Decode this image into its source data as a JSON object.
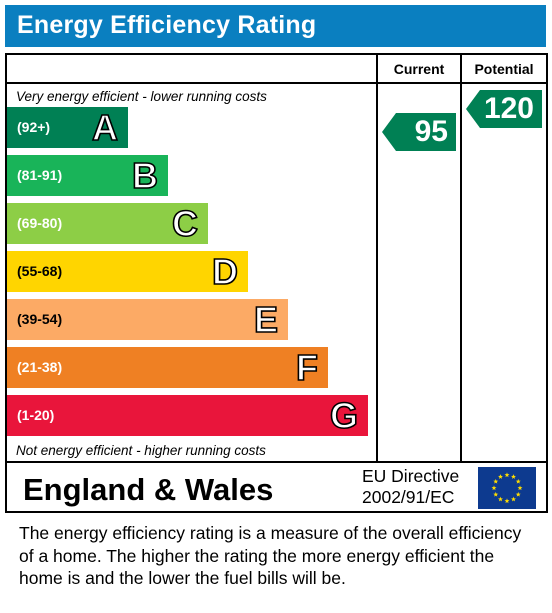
{
  "title": "Energy Efficiency Rating",
  "columns": {
    "current": "Current",
    "potential": "Potential"
  },
  "notes": {
    "top": "Very energy efficient - lower running costs",
    "bottom": "Not energy efficient - higher running costs"
  },
  "footer": {
    "region": "England & Wales",
    "directive_line1": "EU Directive",
    "directive_line2": "2002/91/EC"
  },
  "description": "The energy efficiency rating is a measure of the overall efficiency of a home.  The higher the rating the more energy efficient the home is and the lower the fuel bills will be.",
  "chart_data": {
    "type": "bar",
    "bands": [
      {
        "letter": "A",
        "range": "(92+)",
        "color": "#008054"
      },
      {
        "letter": "B",
        "range": "(81-91)",
        "color": "#19b459"
      },
      {
        "letter": "C",
        "range": "(69-80)",
        "color": "#8dce46"
      },
      {
        "letter": "D",
        "range": "(55-68)",
        "color": "#ffd500"
      },
      {
        "letter": "E",
        "range": "(39-54)",
        "color": "#fcaa65"
      },
      {
        "letter": "F",
        "range": "(21-38)",
        "color": "#ef8023"
      },
      {
        "letter": "G",
        "range": "(1-20)",
        "color": "#e9153b"
      }
    ],
    "current": {
      "value": 95,
      "band": "A",
      "color": "#008054"
    },
    "potential": {
      "value": 120,
      "band": "A",
      "color": "#008054"
    }
  }
}
